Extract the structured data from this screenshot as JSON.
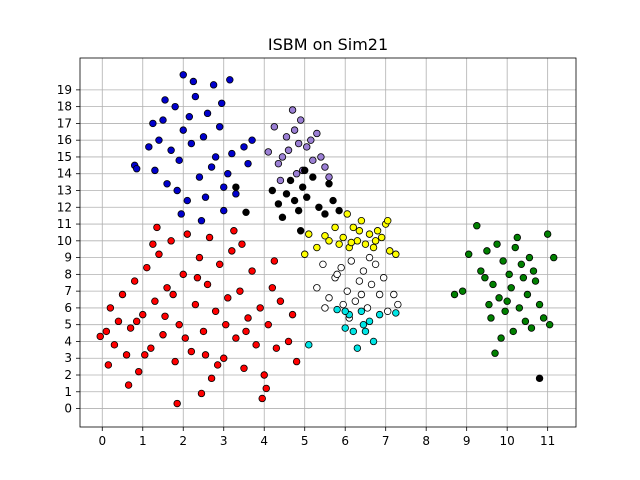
{
  "chart_data": {
    "type": "scatter",
    "title": "ISBM on Sim21",
    "xlabel": "",
    "ylabel": "",
    "xlim": [
      -0.55,
      11.7
    ],
    "ylim": [
      -1.1,
      20.9
    ],
    "xticks": [
      0,
      1,
      2,
      3,
      4,
      5,
      6,
      7,
      8,
      9,
      10,
      11
    ],
    "yticks": [
      0,
      1,
      2,
      3,
      4,
      5,
      6,
      7,
      8,
      9,
      10,
      11,
      12,
      13,
      14,
      15,
      16,
      17,
      18,
      19
    ],
    "grid": true,
    "legend": "none",
    "clusters": [
      {
        "color": "#ff0000",
        "points": [
          [
            -0.05,
            4.3
          ],
          [
            0.1,
            4.6
          ],
          [
            0.2,
            6.0
          ],
          [
            0.15,
            2.6
          ],
          [
            0.3,
            3.8
          ],
          [
            0.4,
            5.2
          ],
          [
            0.5,
            6.8
          ],
          [
            0.6,
            3.2
          ],
          [
            0.7,
            4.8
          ],
          [
            0.8,
            7.6
          ],
          [
            0.9,
            2.2
          ],
          [
            1.0,
            5.6
          ],
          [
            1.1,
            8.4
          ],
          [
            1.2,
            3.6
          ],
          [
            1.3,
            6.4
          ],
          [
            1.4,
            9.2
          ],
          [
            1.5,
            4.4
          ],
          [
            1.6,
            7.2
          ],
          [
            1.7,
            10.0
          ],
          [
            1.8,
            2.8
          ],
          [
            1.9,
            5.0
          ],
          [
            2.0,
            8.0
          ],
          [
            2.1,
            10.4
          ],
          [
            2.2,
            3.4
          ],
          [
            2.3,
            6.2
          ],
          [
            2.4,
            9.0
          ],
          [
            2.5,
            4.6
          ],
          [
            2.6,
            7.4
          ],
          [
            2.7,
            1.8
          ],
          [
            2.8,
            5.8
          ],
          [
            2.9,
            8.6
          ],
          [
            3.0,
            3.0
          ],
          [
            3.1,
            6.6
          ],
          [
            3.2,
            9.4
          ],
          [
            3.3,
            4.2
          ],
          [
            3.4,
            7.0
          ],
          [
            3.5,
            2.4
          ],
          [
            3.6,
            5.4
          ],
          [
            3.7,
            8.2
          ],
          [
            3.8,
            3.8
          ],
          [
            3.9,
            6.0
          ],
          [
            4.0,
            2.0
          ],
          [
            4.1,
            5.0
          ],
          [
            4.2,
            7.2
          ],
          [
            4.3,
            3.6
          ],
          [
            4.4,
            6.4
          ],
          [
            4.6,
            4.0
          ],
          [
            4.7,
            5.6
          ],
          [
            4.8,
            2.8
          ],
          [
            1.35,
            10.8
          ],
          [
            1.85,
            0.3
          ],
          [
            3.25,
            10.6
          ],
          [
            0.65,
            1.4
          ],
          [
            2.45,
            0.9
          ],
          [
            3.95,
            0.6
          ],
          [
            4.05,
            1.2
          ],
          [
            1.05,
            3.2
          ],
          [
            1.55,
            5.5
          ],
          [
            2.05,
            4.2
          ],
          [
            2.55,
            3.2
          ],
          [
            3.05,
            5.0
          ],
          [
            3.55,
            4.6
          ],
          [
            2.35,
            7.8
          ],
          [
            1.75,
            6.8
          ],
          [
            2.85,
            2.6
          ],
          [
            3.45,
            9.8
          ],
          [
            1.25,
            9.8
          ],
          [
            0.85,
            5.2
          ],
          [
            2.65,
            10.2
          ],
          [
            4.25,
            8.8
          ]
        ]
      },
      {
        "color": "#0000cc",
        "points": [
          [
            1.3,
            14.2
          ],
          [
            1.4,
            16.0
          ],
          [
            1.5,
            17.2
          ],
          [
            1.6,
            13.4
          ],
          [
            1.7,
            15.4
          ],
          [
            1.8,
            18.0
          ],
          [
            1.9,
            14.8
          ],
          [
            2.0,
            16.6
          ],
          [
            2.1,
            12.4
          ],
          [
            2.2,
            15.8
          ],
          [
            2.3,
            18.6
          ],
          [
            2.4,
            13.8
          ],
          [
            2.5,
            16.2
          ],
          [
            2.6,
            17.6
          ],
          [
            2.7,
            14.4
          ],
          [
            2.8,
            15.0
          ],
          [
            2.9,
            16.8
          ],
          [
            3.0,
            13.2
          ],
          [
            3.1,
            14.0
          ],
          [
            3.2,
            15.2
          ],
          [
            3.3,
            12.8
          ],
          [
            1.55,
            18.4
          ],
          [
            2.0,
            19.9
          ],
          [
            2.25,
            19.5
          ],
          [
            2.75,
            19.3
          ],
          [
            3.15,
            19.6
          ],
          [
            0.8,
            14.5
          ],
          [
            0.85,
            14.3
          ],
          [
            3.0,
            11.8
          ],
          [
            2.45,
            11.2
          ],
          [
            1.95,
            11.6
          ],
          [
            3.5,
            15.6
          ],
          [
            3.6,
            14.6
          ],
          [
            3.7,
            16.0
          ],
          [
            1.15,
            15.6
          ],
          [
            1.25,
            17.0
          ],
          [
            2.55,
            12.6
          ],
          [
            1.85,
            13.0
          ],
          [
            2.95,
            18.2
          ],
          [
            2.15,
            17.4
          ]
        ]
      },
      {
        "color": "#9b7fd4",
        "points": [
          [
            4.1,
            15.3
          ],
          [
            4.25,
            16.8
          ],
          [
            4.35,
            14.6
          ],
          [
            4.45,
            15.0
          ],
          [
            4.55,
            16.2
          ],
          [
            4.6,
            15.4
          ],
          [
            4.7,
            17.8
          ],
          [
            4.75,
            16.6
          ],
          [
            4.85,
            15.8
          ],
          [
            4.95,
            14.2
          ],
          [
            5.05,
            15.6
          ],
          [
            5.2,
            14.8
          ],
          [
            5.3,
            16.4
          ],
          [
            5.4,
            15.0
          ],
          [
            5.5,
            14.4
          ],
          [
            5.6,
            13.8
          ],
          [
            4.9,
            17.2
          ],
          [
            4.4,
            13.6
          ],
          [
            4.8,
            14.0
          ],
          [
            5.15,
            16.0
          ]
        ]
      },
      {
        "color": "#000000",
        "points": [
          [
            4.2,
            13.0
          ],
          [
            4.35,
            12.2
          ],
          [
            4.45,
            11.4
          ],
          [
            4.55,
            12.8
          ],
          [
            4.65,
            13.6
          ],
          [
            4.75,
            12.4
          ],
          [
            4.85,
            11.8
          ],
          [
            4.95,
            13.2
          ],
          [
            5.05,
            12.6
          ],
          [
            5.2,
            13.8
          ],
          [
            5.35,
            12.0
          ],
          [
            5.5,
            11.6
          ],
          [
            5.6,
            13.4
          ],
          [
            5.7,
            12.4
          ],
          [
            5.85,
            11.8
          ],
          [
            4.9,
            10.6
          ],
          [
            3.55,
            11.7
          ],
          [
            3.3,
            13.2
          ],
          [
            5.0,
            14.2
          ],
          [
            10.8,
            1.8
          ]
        ]
      },
      {
        "color": "#ffff00",
        "points": [
          [
            5.1,
            10.4
          ],
          [
            5.3,
            9.6
          ],
          [
            5.5,
            10.3
          ],
          [
            5.6,
            10.0
          ],
          [
            5.75,
            10.8
          ],
          [
            5.85,
            9.8
          ],
          [
            5.95,
            10.2
          ],
          [
            6.05,
            11.6
          ],
          [
            6.1,
            9.6
          ],
          [
            6.2,
            10.8
          ],
          [
            6.3,
            10.0
          ],
          [
            6.4,
            11.2
          ],
          [
            6.5,
            9.8
          ],
          [
            6.6,
            10.4
          ],
          [
            6.7,
            9.6
          ],
          [
            6.8,
            10.6
          ],
          [
            6.9,
            10.2
          ],
          [
            7.0,
            11.0
          ],
          [
            7.1,
            9.4
          ],
          [
            7.25,
            9.2
          ],
          [
            5.0,
            9.2
          ],
          [
            6.35,
            10.6
          ],
          [
            6.75,
            10.0
          ],
          [
            6.15,
            9.9
          ],
          [
            7.05,
            11.2
          ]
        ]
      },
      {
        "color": "#ffffff",
        "points": [
          [
            5.3,
            7.2
          ],
          [
            5.45,
            8.6
          ],
          [
            5.6,
            6.6
          ],
          [
            5.75,
            7.8
          ],
          [
            5.9,
            8.4
          ],
          [
            5.95,
            6.2
          ],
          [
            6.05,
            7.0
          ],
          [
            6.15,
            8.8
          ],
          [
            6.25,
            6.4
          ],
          [
            6.35,
            7.6
          ],
          [
            6.45,
            8.2
          ],
          [
            6.55,
            6.0
          ],
          [
            6.65,
            7.4
          ],
          [
            6.75,
            8.6
          ],
          [
            6.85,
            6.8
          ],
          [
            6.95,
            7.8
          ],
          [
            7.05,
            5.8
          ],
          [
            7.2,
            6.8
          ],
          [
            7.3,
            6.2
          ],
          [
            5.5,
            6.0
          ],
          [
            6.1,
            5.4
          ],
          [
            6.6,
            9.0
          ],
          [
            5.8,
            8.0
          ],
          [
            6.4,
            6.8
          ]
        ]
      },
      {
        "color": "#00e5e5",
        "points": [
          [
            5.1,
            3.8
          ],
          [
            5.8,
            5.9
          ],
          [
            6.0,
            4.8
          ],
          [
            6.1,
            5.6
          ],
          [
            6.2,
            4.6
          ],
          [
            6.3,
            3.6
          ],
          [
            6.4,
            5.8
          ],
          [
            6.5,
            4.6
          ],
          [
            6.6,
            5.2
          ],
          [
            6.7,
            4.0
          ],
          [
            6.85,
            5.6
          ],
          [
            7.25,
            5.7
          ],
          [
            6.45,
            5.0
          ],
          [
            6.0,
            5.8
          ]
        ]
      },
      {
        "color": "#008000",
        "points": [
          [
            8.7,
            6.8
          ],
          [
            8.9,
            7.0
          ],
          [
            9.05,
            9.2
          ],
          [
            9.25,
            10.9
          ],
          [
            9.35,
            8.2
          ],
          [
            9.45,
            7.8
          ],
          [
            9.5,
            9.4
          ],
          [
            9.6,
            5.4
          ],
          [
            9.65,
            7.4
          ],
          [
            9.7,
            3.3
          ],
          [
            9.75,
            9.8
          ],
          [
            9.8,
            6.6
          ],
          [
            9.85,
            4.2
          ],
          [
            9.9,
            8.8
          ],
          [
            9.95,
            5.8
          ],
          [
            10.0,
            6.4
          ],
          [
            10.05,
            8.0
          ],
          [
            10.1,
            7.2
          ],
          [
            10.15,
            4.6
          ],
          [
            10.2,
            9.6
          ],
          [
            10.25,
            10.2
          ],
          [
            10.3,
            6.0
          ],
          [
            10.35,
            8.6
          ],
          [
            10.4,
            7.8
          ],
          [
            10.45,
            5.2
          ],
          [
            10.5,
            6.8
          ],
          [
            10.55,
            9.0
          ],
          [
            10.6,
            4.8
          ],
          [
            10.7,
            7.6
          ],
          [
            10.8,
            6.2
          ],
          [
            10.9,
            5.4
          ],
          [
            11.0,
            10.4
          ],
          [
            11.05,
            5.0
          ],
          [
            11.15,
            9.0
          ],
          [
            10.65,
            8.2
          ],
          [
            9.55,
            6.2
          ]
        ]
      }
    ]
  }
}
